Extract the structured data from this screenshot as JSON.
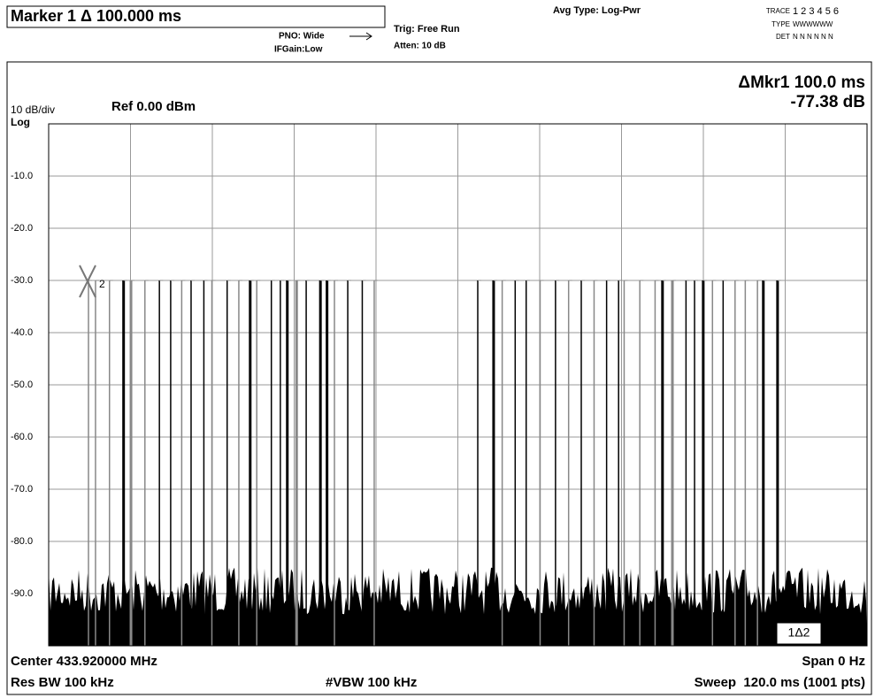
{
  "header": {
    "marker": "Marker 1 Δ 100.000 ms",
    "pno": "PNO: Wide",
    "ifgain": "IFGain:Low",
    "trig": "Trig: Free Run",
    "atten": "Atten: 10 dB",
    "avg": "Avg Type: Log-Pwr",
    "trace_label": "TRACE",
    "trace_nums": "1 2 3 4 5 6",
    "type_label": "TYPE",
    "type_vals": "WWWWWW",
    "det_label": "DET",
    "det_vals": "N N N N N N"
  },
  "readout": {
    "mkr": "ΔMkr1 100.0 ms",
    "level": "-77.38 dB"
  },
  "scale": {
    "div": "10 dB/div",
    "ref": "Ref 0.00 dBm",
    "log": "Log",
    "ylabels": [
      "-10.0",
      "-20.0",
      "-30.0",
      "-40.0",
      "-50.0",
      "-60.0",
      "-70.0",
      "-80.0",
      "-90.0"
    ]
  },
  "markers": {
    "m2": "2",
    "delta": "1Δ2"
  },
  "footer": {
    "center": "Center 433.920000 MHz",
    "span": "Span 0 Hz",
    "rbw": "Res BW 100 kHz",
    "vbw": "#VBW 100 kHz",
    "sweep": "Sweep  120.0 ms (1001 pts)"
  }
}
